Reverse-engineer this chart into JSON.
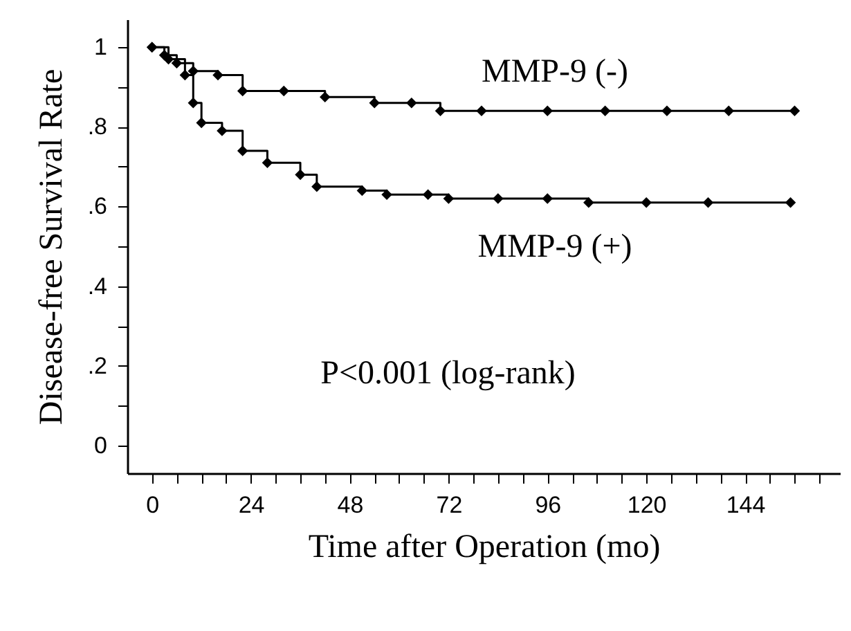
{
  "chart_data": {
    "type": "step",
    "xlabel": "Time after Operation (mo)",
    "ylabel": "Disease-free Survival Rate",
    "annotations": [
      "P<0.001 (log-rank)"
    ],
    "xlim": [
      -6,
      167
    ],
    "ylim": [
      -0.07,
      1.07
    ],
    "xticks": [
      0,
      {
        "value": 6,
        "label": null
      },
      {
        "value": 12,
        "label": null
      },
      {
        "value": 18,
        "label": null
      },
      24,
      {
        "value": 30,
        "label": null
      },
      {
        "value": 36,
        "label": null
      },
      {
        "value": 42,
        "label": null
      },
      48,
      {
        "value": 54,
        "label": null
      },
      {
        "value": 60,
        "label": null
      },
      {
        "value": 66,
        "label": null
      },
      72,
      {
        "value": 78,
        "label": null
      },
      {
        "value": 84,
        "label": null
      },
      {
        "value": 90,
        "label": null
      },
      96,
      {
        "value": 102,
        "label": null
      },
      {
        "value": 108,
        "label": null
      },
      {
        "value": 114,
        "label": null
      },
      120,
      {
        "value": 126,
        "label": null
      },
      {
        "value": 132,
        "label": null
      },
      {
        "value": 138,
        "label": null
      },
      144,
      {
        "value": 150,
        "label": null
      },
      {
        "value": 156,
        "label": null
      },
      {
        "value": 162,
        "label": null
      }
    ],
    "yticks": [
      0,
      {
        "value": 0.1,
        "label": null
      },
      {
        "value": 0.2,
        "label": ".2"
      },
      {
        "value": 0.3,
        "label": null
      },
      {
        "value": 0.4,
        "label": ".4"
      },
      {
        "value": 0.5,
        "label": null
      },
      {
        "value": 0.6,
        "label": ".6"
      },
      {
        "value": 0.7,
        "label": null
      },
      {
        "value": 0.8,
        "label": ".8"
      },
      {
        "value": 0.9,
        "label": null
      },
      1
    ],
    "marker": "diamond",
    "line_style": "solid",
    "series": [
      {
        "name": "MMP-9 (-)",
        "color": "#000000",
        "x": [
          0,
          3,
          6,
          10,
          16,
          22,
          32,
          42,
          54,
          63,
          70,
          80,
          96,
          110,
          125,
          140,
          156
        ],
        "values": [
          1.0,
          0.98,
          0.96,
          0.94,
          0.93,
          0.89,
          0.89,
          0.875,
          0.86,
          0.86,
          0.84,
          0.84,
          0.84,
          0.84,
          0.84,
          0.84,
          0.84
        ]
      },
      {
        "name": "MMP-9 (+)",
        "color": "#000000",
        "x": [
          0,
          4,
          8,
          10,
          12,
          17,
          22,
          28,
          36,
          40,
          51,
          57,
          67,
          72,
          84,
          96,
          106,
          120,
          135,
          155
        ],
        "values": [
          1.0,
          0.97,
          0.93,
          0.86,
          0.81,
          0.79,
          0.74,
          0.71,
          0.68,
          0.65,
          0.64,
          0.63,
          0.63,
          0.62,
          0.62,
          0.62,
          0.61,
          0.61,
          0.61,
          0.61
        ]
      }
    ]
  }
}
